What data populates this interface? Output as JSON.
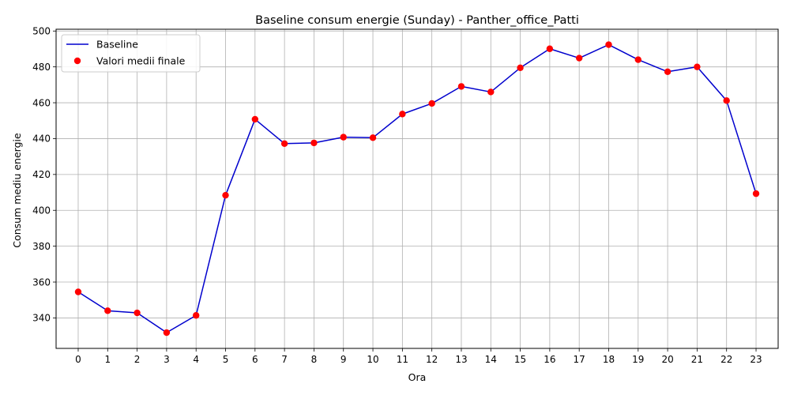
{
  "chart_data": {
    "type": "line",
    "title": "Baseline consum energie (Sunday) - Panther_office_Patti",
    "xlabel": "Ora",
    "ylabel": "Consum mediu energie",
    "x": [
      0,
      1,
      2,
      3,
      4,
      5,
      6,
      7,
      8,
      9,
      10,
      11,
      12,
      13,
      14,
      15,
      16,
      17,
      18,
      19,
      20,
      21,
      22,
      23
    ],
    "x_tick_labels": [
      "0",
      "1",
      "2",
      "3",
      "4",
      "5",
      "6",
      "7",
      "8",
      "9",
      "10",
      "11",
      "12",
      "13",
      "14",
      "15",
      "16",
      "17",
      "18",
      "19",
      "20",
      "21",
      "22",
      "23"
    ],
    "xlim": [
      -0.75,
      23.75
    ],
    "ylim": [
      323,
      501
    ],
    "y_ticks": [
      340,
      360,
      380,
      400,
      420,
      440,
      460,
      480,
      500
    ],
    "y_tick_labels": [
      "340",
      "360",
      "380",
      "400",
      "420",
      "440",
      "460",
      "480",
      "500"
    ],
    "grid": true,
    "legend_position": "top-left",
    "series": [
      {
        "name": "Baseline",
        "kind": "line",
        "color": "#0000cd",
        "values": [
          354.5,
          344.0,
          342.8,
          331.8,
          341.4,
          408.4,
          450.8,
          437.2,
          437.6,
          440.8,
          440.5,
          453.7,
          459.6,
          469.1,
          466.0,
          479.5,
          490.1,
          484.9,
          492.4,
          484.0,
          477.3,
          480.0,
          461.2,
          409.3
        ]
      },
      {
        "name": "Valori medii finale",
        "kind": "scatter",
        "color": "#ff0000",
        "values": [
          354.5,
          344.0,
          342.8,
          331.8,
          341.4,
          408.4,
          450.8,
          437.2,
          437.6,
          440.8,
          440.5,
          453.7,
          459.6,
          469.1,
          466.0,
          479.5,
          490.1,
          484.9,
          492.4,
          484.0,
          477.3,
          480.0,
          461.2,
          409.3
        ]
      }
    ]
  }
}
